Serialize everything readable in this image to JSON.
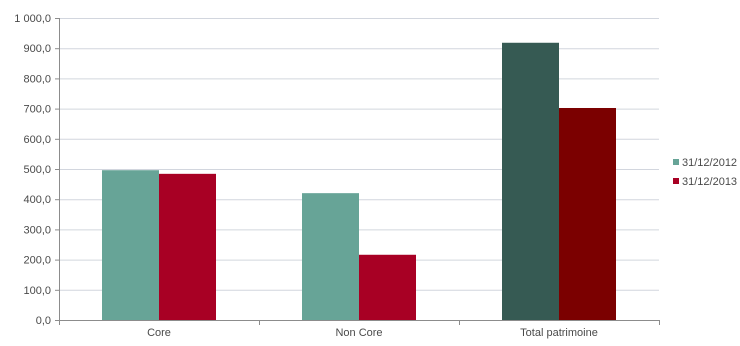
{
  "chart_data": {
    "type": "bar",
    "title": "",
    "xlabel": "",
    "ylabel": "",
    "categories": [
      "Core",
      "Non Core",
      "Total patrimoine"
    ],
    "series": [
      {
        "name": "31/12/2012",
        "values": [
          496,
          420,
          918
        ],
        "colors": [
          "#67a497",
          "#67a497",
          "#365a53"
        ]
      },
      {
        "name": "31/12/2013",
        "values": [
          484,
          216,
          702
        ],
        "colors": [
          "#a80024",
          "#a80024",
          "#7b0000"
        ]
      }
    ],
    "legend_colors": [
      "#67a497",
      "#a80024"
    ],
    "ylim": [
      0,
      1000
    ],
    "y_ticks": [
      0,
      100,
      200,
      300,
      400,
      500,
      600,
      700,
      800,
      900,
      1000
    ],
    "y_tick_labels": [
      "0,0",
      "100,0",
      "200,0",
      "300,0",
      "400,0",
      "500,0",
      "600,0",
      "700,0",
      "800,0",
      "900,0",
      "1 000,0"
    ],
    "grid": true,
    "legend_position": "right"
  }
}
